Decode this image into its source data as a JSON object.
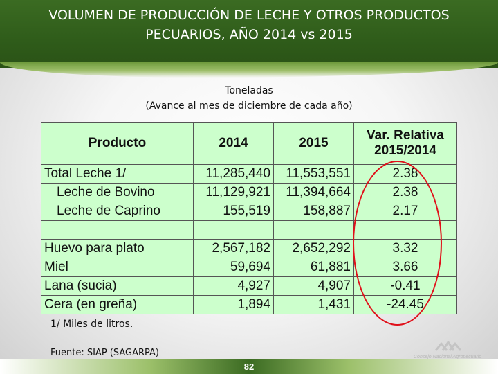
{
  "title_line1": "VOLUMEN DE PRODUCCIÓN DE LECHE Y OTROS PRODUCTOS",
  "title_line2": "PECUARIOS,  AÑO 2014 vs 2015",
  "subtitle_line1": "Toneladas",
  "subtitle_line2": "(Avance al mes de diciembre de cada año)",
  "table": {
    "headers": [
      "Producto",
      "2014",
      "2015",
      "Var. Relativa 2015/2014"
    ],
    "header_var_line1": "Var. Relativa",
    "header_var_line2": "2015/2014",
    "rows": [
      {
        "producto": "Total Leche 1/",
        "y2014": "11,285,440",
        "y2015": "11,553,551",
        "var": "2.38"
      },
      {
        "producto": "Leche de Bovino",
        "y2014": "11,129,921",
        "y2015": "11,394,664",
        "var": "2.38"
      },
      {
        "producto": "Leche de Caprino",
        "y2014": "155,519",
        "y2015": "158,887",
        "var": "2.17"
      },
      {
        "producto": "",
        "y2014": "",
        "y2015": "",
        "var": ""
      },
      {
        "producto": "Huevo para plato",
        "y2014": "2,567,182",
        "y2015": "2,652,292",
        "var": "3.32"
      },
      {
        "producto": "Miel",
        "y2014": "59,694",
        "y2015": "61,881",
        "var": "3.66"
      },
      {
        "producto": "Lana (sucia)",
        "y2014": "4,927",
        "y2015": "4,907",
        "var": "-0.41"
      },
      {
        "producto": "Cera (en greña)",
        "y2014": "1,894",
        "y2015": "1,431",
        "var": "-24.45"
      }
    ]
  },
  "footnote": "1/ Miles de litros.",
  "source": "Fuente: SIAP (SAGARPA)",
  "page_number": "82",
  "logo_text": "Consejo Nacional Agropecuario",
  "colors": {
    "header_green": "#2f5c1a",
    "table_bg": "#ccffcc",
    "highlight_oval": "#e0101a"
  }
}
